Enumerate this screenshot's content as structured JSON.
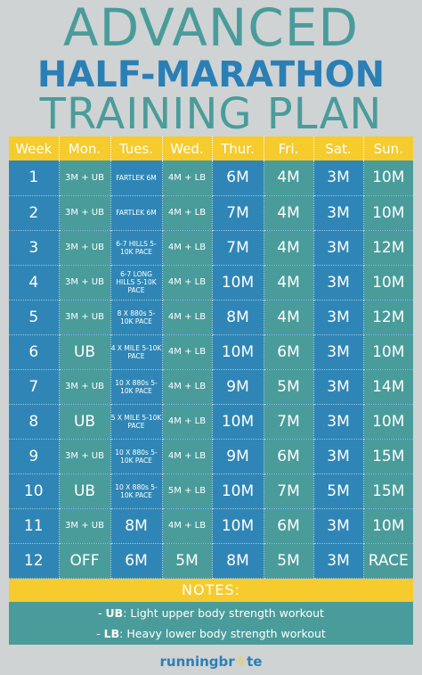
{
  "title": {
    "line1": "ADVANCED",
    "line2": "HALF-MARATHON",
    "line3": "TRAINING PLAN"
  },
  "table": {
    "headers": [
      "Week",
      "Mon.",
      "Tues.",
      "Wed.",
      "Thur.",
      "Fri.",
      "Sat.",
      "Sun."
    ],
    "rows": [
      [
        "1",
        "3M + UB",
        "FARTLEK 6M",
        "4M + LB",
        "6M",
        "4M",
        "3M",
        "10M"
      ],
      [
        "2",
        "3M + UB",
        "FARTLEK 6M",
        "4M + LB",
        "7M",
        "4M",
        "3M",
        "10M"
      ],
      [
        "3",
        "3M + UB",
        "6-7 HILLS 5-10K PACE",
        "4M + LB",
        "7M",
        "4M",
        "3M",
        "12M"
      ],
      [
        "4",
        "3M + UB",
        "6-7 LONG HILLS 5-10K PACE",
        "4M + LB",
        "10M",
        "4M",
        "3M",
        "10M"
      ],
      [
        "5",
        "3M + UB",
        "8 X 880s 5-10K PACE",
        "4M + LB",
        "8M",
        "4M",
        "3M",
        "12M"
      ],
      [
        "6",
        "UB",
        "4 X MILE 5-10K PACE",
        "4M + LB",
        "10M",
        "6M",
        "3M",
        "10M"
      ],
      [
        "7",
        "3M + UB",
        "10 X 880s 5-10K PACE",
        "4M + LB",
        "9M",
        "5M",
        "3M",
        "14M"
      ],
      [
        "8",
        "UB",
        "5 X MILE 5-10K PACE",
        "4M + LB",
        "10M",
        "7M",
        "3M",
        "10M"
      ],
      [
        "9",
        "3M + UB",
        "10 X 880s 5-10K PACE",
        "4M + LB",
        "9M",
        "6M",
        "3M",
        "15M"
      ],
      [
        "10",
        "UB",
        "10 X 880s 5-10K PACE",
        "5M + LB",
        "10M",
        "7M",
        "5M",
        "15M"
      ],
      [
        "11",
        "3M + UB",
        "8M",
        "4M + LB",
        "10M",
        "6M",
        "3M",
        "10M"
      ],
      [
        "12",
        "OFF",
        "6M",
        "5M",
        "8M",
        "5M",
        "3M",
        "RACE"
      ]
    ]
  },
  "notes": {
    "heading": "NOTES:",
    "items": [
      {
        "prefix": "- ",
        "key": "UB",
        "text": ": Light upper body strength workout"
      },
      {
        "prefix": "- ",
        "key": "LB",
        "text": ": Heavy lower body strength workout"
      }
    ]
  },
  "brand": {
    "name_part1": "runningbr",
    "name_bulb": "☼",
    "name_part2": "te",
    "icon": "lightbulb-icon"
  },
  "colors": {
    "teal": "#4a9c9b",
    "blue": "#2f86b6",
    "yellow": "#f6cb2d",
    "background": "#cfd3d3"
  }
}
